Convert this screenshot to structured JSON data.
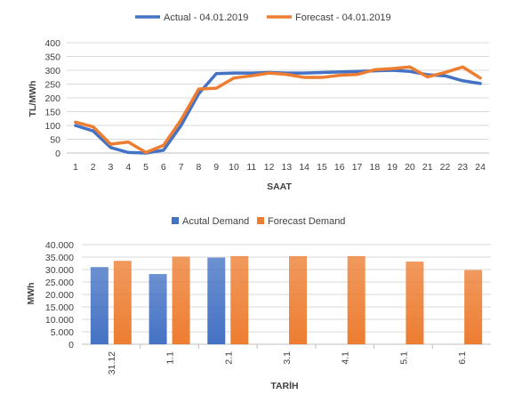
{
  "chart_data": [
    {
      "type": "line",
      "title": "",
      "xlabel": "SAAT",
      "ylabel": "TL/MWh",
      "ylim": [
        0,
        400
      ],
      "yticks": [
        0,
        50,
        100,
        150,
        200,
        250,
        300,
        350,
        400
      ],
      "grid": true,
      "legend_position": "top",
      "x": [
        1,
        2,
        3,
        4,
        5,
        6,
        7,
        8,
        9,
        10,
        11,
        12,
        13,
        14,
        15,
        16,
        17,
        18,
        19,
        20,
        21,
        22,
        23,
        24
      ],
      "series": [
        {
          "name": "Actual - 04.01.2019",
          "color": "#4472c4",
          "values": [
            100,
            80,
            20,
            2,
            0,
            10,
            100,
            215,
            288,
            290,
            290,
            292,
            290,
            290,
            292,
            294,
            296,
            298,
            300,
            296,
            284,
            280,
            262,
            252
          ]
        },
        {
          "name": "Forecast - 04.01.2019",
          "color": "#ed7d31",
          "values": [
            112,
            95,
            32,
            40,
            2,
            28,
            120,
            232,
            235,
            272,
            280,
            290,
            285,
            274,
            274,
            282,
            285,
            302,
            306,
            312,
            276,
            292,
            312,
            272
          ]
        }
      ]
    },
    {
      "type": "bar",
      "title": "",
      "xlabel": "TARİH",
      "ylabel": "MWh",
      "ylim": [
        0,
        40000
      ],
      "yticks": [
        0,
        5000,
        10000,
        15000,
        20000,
        25000,
        30000,
        35000,
        40000
      ],
      "ytick_labels": [
        "0",
        "5.000",
        "10.000",
        "15.000",
        "20.000",
        "25.000",
        "30.000",
        "35.000",
        "40.000"
      ],
      "grid": true,
      "legend_position": "top",
      "categories": [
        "31.12",
        "1.1",
        "2.1",
        "3.1",
        "4.1",
        "5.1",
        "6.1"
      ],
      "series": [
        {
          "name": "Acutal Demand",
          "color": "#4472c4",
          "values": [
            31000,
            28200,
            34800,
            null,
            null,
            null,
            null
          ]
        },
        {
          "name": "Forecast Demand",
          "color": "#ed7d31",
          "values": [
            33500,
            35200,
            35400,
            35400,
            35400,
            33200,
            29800
          ]
        }
      ]
    }
  ]
}
